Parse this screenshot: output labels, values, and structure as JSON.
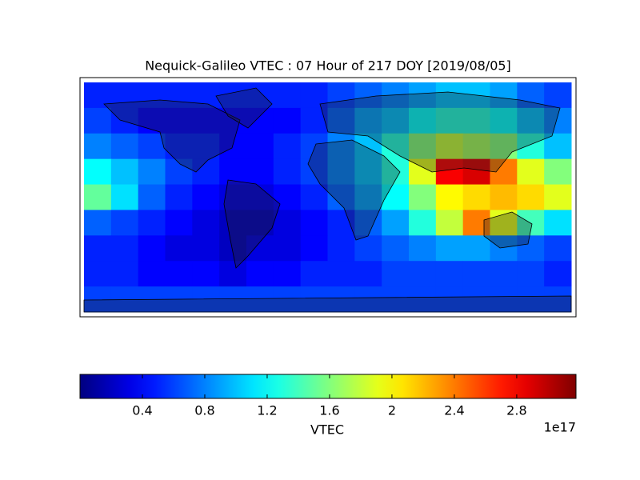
{
  "chart_data": {
    "type": "heatmap",
    "title": "Nequick-Galileo VTEC : 07 Hour of 217 DOY [2019/08/05]",
    "colormap": "jet",
    "values": [
      [
        0.5,
        0.5,
        0.5,
        0.5,
        0.5,
        0.5,
        0.5,
        0.5,
        0.5,
        0.6,
        0.7,
        0.8,
        0.9,
        1.0,
        1.0,
        0.9,
        0.7,
        0.6
      ],
      [
        0.6,
        0.5,
        0.4,
        0.4,
        0.4,
        0.4,
        0.4,
        0.4,
        0.5,
        0.7,
        0.9,
        1.0,
        1.2,
        1.3,
        1.3,
        1.2,
        1.0,
        0.8
      ],
      [
        0.8,
        0.7,
        0.6,
        0.5,
        0.5,
        0.4,
        0.4,
        0.5,
        0.6,
        0.8,
        1.0,
        1.3,
        1.6,
        1.8,
        1.7,
        1.6,
        1.3,
        1.0
      ],
      [
        1.2,
        1.0,
        0.8,
        0.6,
        0.5,
        0.4,
        0.4,
        0.5,
        0.6,
        0.8,
        1.0,
        1.3,
        1.9,
        2.8,
        2.9,
        2.4,
        1.9,
        1.6
      ],
      [
        1.5,
        1.1,
        0.7,
        0.5,
        0.4,
        0.3,
        0.3,
        0.4,
        0.5,
        0.7,
        0.9,
        1.2,
        1.6,
        2.0,
        2.1,
        2.2,
        2.1,
        1.9
      ],
      [
        0.7,
        0.6,
        0.5,
        0.4,
        0.3,
        0.2,
        0.2,
        0.3,
        0.4,
        0.5,
        0.7,
        0.9,
        1.3,
        1.8,
        2.4,
        1.9,
        1.4,
        1.1
      ],
      [
        0.5,
        0.5,
        0.4,
        0.3,
        0.3,
        0.2,
        0.3,
        0.3,
        0.4,
        0.5,
        0.6,
        0.7,
        0.8,
        0.9,
        0.9,
        0.8,
        0.7,
        0.6
      ],
      [
        0.5,
        0.5,
        0.4,
        0.4,
        0.4,
        0.3,
        0.4,
        0.4,
        0.5,
        0.5,
        0.5,
        0.6,
        0.6,
        0.6,
        0.6,
        0.6,
        0.6,
        0.5
      ],
      [
        0.6,
        0.6,
        0.6,
        0.6,
        0.6,
        0.6,
        0.6,
        0.6,
        0.6,
        0.6,
        0.6,
        0.6,
        0.6,
        0.6,
        0.6,
        0.6,
        0.6,
        0.6
      ]
    ],
    "clim": [
      0.0,
      3.18
    ],
    "cticks": [
      0.4,
      0.8,
      1.2,
      1.6,
      2.0,
      2.4,
      2.8
    ],
    "clabel": "VTEC",
    "offset_label": "1e17"
  }
}
